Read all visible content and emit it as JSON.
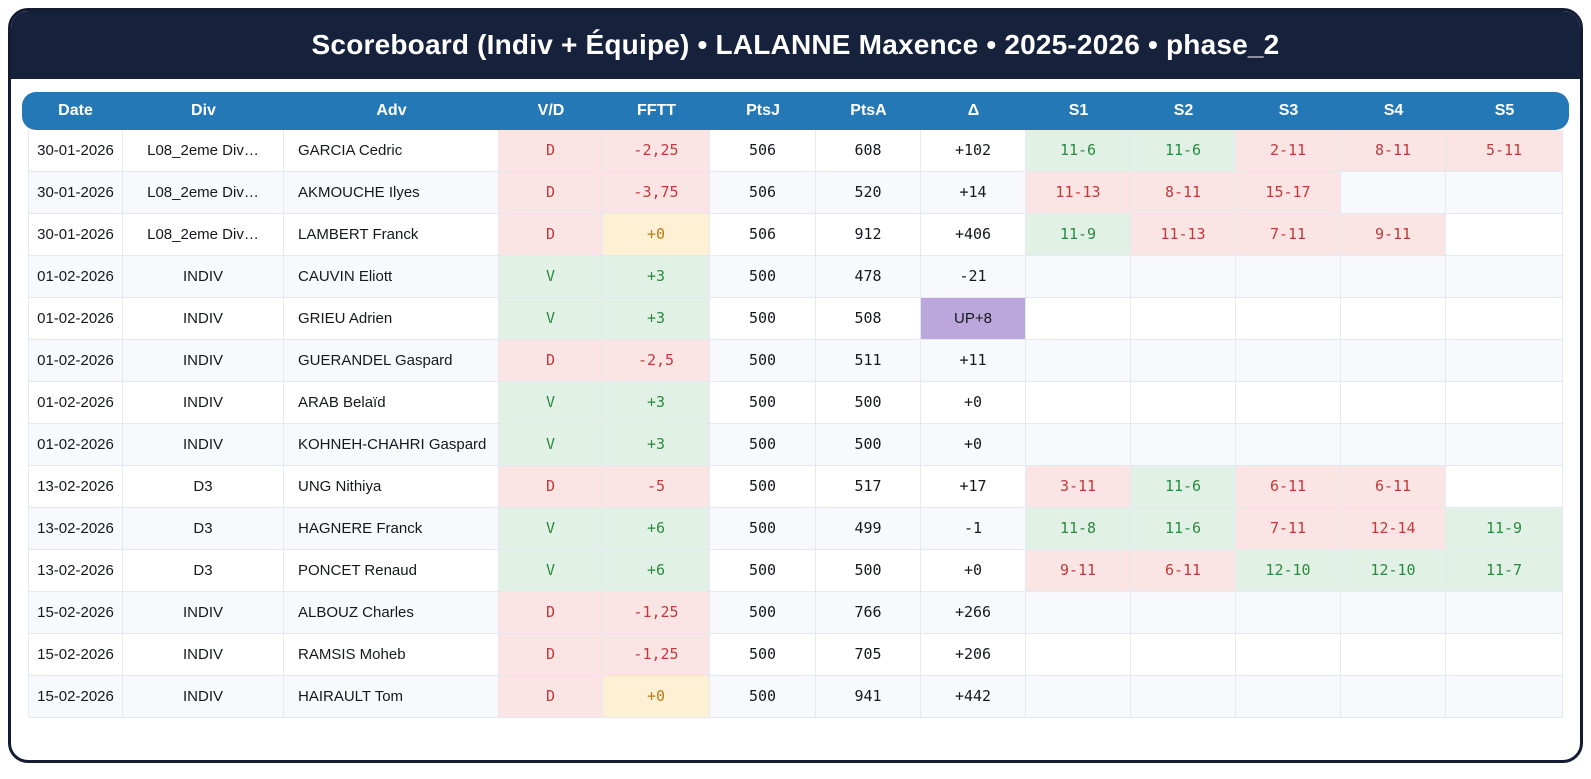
{
  "title": "Scoreboard (Indiv + Équipe) • LALANNE Maxence • 2025-2026 • phase_2",
  "colors": {
    "frame_navy": "#16213c",
    "header_blue": "#2478b5",
    "win_bg": "#e2f1e6",
    "win_text": "#2b8a3e",
    "loss_bg": "#fbe5e4",
    "loss_text": "#c0393b",
    "zero_bg": "#fdf0d5",
    "zero_text": "#b47d15",
    "delta_up_bg": "#bca7dc",
    "row_alt_bg": "#f7f9fc"
  },
  "table": {
    "columns": [
      "Date",
      "Div",
      "Adv",
      "V/D",
      "FFTT",
      "PtsJ",
      "PtsA",
      "Δ",
      "S1",
      "S2",
      "S3",
      "S4",
      "S5"
    ],
    "rows": [
      {
        "date": "30-01-2026",
        "div": "L08_2eme Div…",
        "adv": "GARCIA Cedric",
        "vd": {
          "label": "D",
          "result": "loss"
        },
        "fftt": {
          "label": "-2,25",
          "tone": "loss"
        },
        "ptsj": "506",
        "ptsa": "608",
        "delta": {
          "label": "+102",
          "up": false
        },
        "sets": [
          {
            "score": "11-6",
            "result": "win"
          },
          {
            "score": "11-6",
            "result": "win"
          },
          {
            "score": "2-11",
            "result": "loss"
          },
          {
            "score": "8-11",
            "result": "loss"
          },
          {
            "score": "5-11",
            "result": "loss"
          }
        ]
      },
      {
        "date": "30-01-2026",
        "div": "L08_2eme Div…",
        "adv": "AKMOUCHE Ilyes",
        "vd": {
          "label": "D",
          "result": "loss"
        },
        "fftt": {
          "label": "-3,75",
          "tone": "loss"
        },
        "ptsj": "506",
        "ptsa": "520",
        "delta": {
          "label": "+14",
          "up": false
        },
        "sets": [
          {
            "score": "11-13",
            "result": "loss"
          },
          {
            "score": "8-11",
            "result": "loss"
          },
          {
            "score": "15-17",
            "result": "loss"
          },
          {
            "score": "",
            "result": ""
          },
          {
            "score": "",
            "result": ""
          }
        ]
      },
      {
        "date": "30-01-2026",
        "div": "L08_2eme Div…",
        "adv": "LAMBERT Franck",
        "vd": {
          "label": "D",
          "result": "loss"
        },
        "fftt": {
          "label": "+0",
          "tone": "zero"
        },
        "ptsj": "506",
        "ptsa": "912",
        "delta": {
          "label": "+406",
          "up": false
        },
        "sets": [
          {
            "score": "11-9",
            "result": "win"
          },
          {
            "score": "11-13",
            "result": "loss"
          },
          {
            "score": "7-11",
            "result": "loss"
          },
          {
            "score": "9-11",
            "result": "loss"
          },
          {
            "score": "",
            "result": ""
          }
        ]
      },
      {
        "date": "01-02-2026",
        "div": "INDIV",
        "adv": "CAUVIN Eliott",
        "vd": {
          "label": "V",
          "result": "win"
        },
        "fftt": {
          "label": "+3",
          "tone": "win"
        },
        "ptsj": "500",
        "ptsa": "478",
        "delta": {
          "label": "-21",
          "up": false
        },
        "sets": [
          {
            "score": "",
            "result": ""
          },
          {
            "score": "",
            "result": ""
          },
          {
            "score": "",
            "result": ""
          },
          {
            "score": "",
            "result": ""
          },
          {
            "score": "",
            "result": ""
          }
        ]
      },
      {
        "date": "01-02-2026",
        "div": "INDIV",
        "adv": "GRIEU Adrien",
        "vd": {
          "label": "V",
          "result": "win"
        },
        "fftt": {
          "label": "+3",
          "tone": "win"
        },
        "ptsj": "500",
        "ptsa": "508",
        "delta": {
          "label": "UP+8",
          "up": true
        },
        "sets": [
          {
            "score": "",
            "result": ""
          },
          {
            "score": "",
            "result": ""
          },
          {
            "score": "",
            "result": ""
          },
          {
            "score": "",
            "result": ""
          },
          {
            "score": "",
            "result": ""
          }
        ]
      },
      {
        "date": "01-02-2026",
        "div": "INDIV",
        "adv": "GUERANDEL Gaspard",
        "vd": {
          "label": "D",
          "result": "loss"
        },
        "fftt": {
          "label": "-2,5",
          "tone": "loss"
        },
        "ptsj": "500",
        "ptsa": "511",
        "delta": {
          "label": "+11",
          "up": false
        },
        "sets": [
          {
            "score": "",
            "result": ""
          },
          {
            "score": "",
            "result": ""
          },
          {
            "score": "",
            "result": ""
          },
          {
            "score": "",
            "result": ""
          },
          {
            "score": "",
            "result": ""
          }
        ]
      },
      {
        "date": "01-02-2026",
        "div": "INDIV",
        "adv": "ARAB Belaïd",
        "vd": {
          "label": "V",
          "result": "win"
        },
        "fftt": {
          "label": "+3",
          "tone": "win"
        },
        "ptsj": "500",
        "ptsa": "500",
        "delta": {
          "label": "+0",
          "up": false
        },
        "sets": [
          {
            "score": "",
            "result": ""
          },
          {
            "score": "",
            "result": ""
          },
          {
            "score": "",
            "result": ""
          },
          {
            "score": "",
            "result": ""
          },
          {
            "score": "",
            "result": ""
          }
        ]
      },
      {
        "date": "01-02-2026",
        "div": "INDIV",
        "adv": "KOHNEH-CHAHRI Gaspard",
        "vd": {
          "label": "V",
          "result": "win"
        },
        "fftt": {
          "label": "+3",
          "tone": "win"
        },
        "ptsj": "500",
        "ptsa": "500",
        "delta": {
          "label": "+0",
          "up": false
        },
        "sets": [
          {
            "score": "",
            "result": ""
          },
          {
            "score": "",
            "result": ""
          },
          {
            "score": "",
            "result": ""
          },
          {
            "score": "",
            "result": ""
          },
          {
            "score": "",
            "result": ""
          }
        ]
      },
      {
        "date": "13-02-2026",
        "div": "D3",
        "adv": "UNG Nithiya",
        "vd": {
          "label": "D",
          "result": "loss"
        },
        "fftt": {
          "label": "-5",
          "tone": "loss"
        },
        "ptsj": "500",
        "ptsa": "517",
        "delta": {
          "label": "+17",
          "up": false
        },
        "sets": [
          {
            "score": "3-11",
            "result": "loss"
          },
          {
            "score": "11-6",
            "result": "win"
          },
          {
            "score": "6-11",
            "result": "loss"
          },
          {
            "score": "6-11",
            "result": "loss"
          },
          {
            "score": "",
            "result": ""
          }
        ]
      },
      {
        "date": "13-02-2026",
        "div": "D3",
        "adv": "HAGNERE Franck",
        "vd": {
          "label": "V",
          "result": "win"
        },
        "fftt": {
          "label": "+6",
          "tone": "win"
        },
        "ptsj": "500",
        "ptsa": "499",
        "delta": {
          "label": "-1",
          "up": false
        },
        "sets": [
          {
            "score": "11-8",
            "result": "win"
          },
          {
            "score": "11-6",
            "result": "win"
          },
          {
            "score": "7-11",
            "result": "loss"
          },
          {
            "score": "12-14",
            "result": "loss"
          },
          {
            "score": "11-9",
            "result": "win"
          }
        ]
      },
      {
        "date": "13-02-2026",
        "div": "D3",
        "adv": "PONCET Renaud",
        "vd": {
          "label": "V",
          "result": "win"
        },
        "fftt": {
          "label": "+6",
          "tone": "win"
        },
        "ptsj": "500",
        "ptsa": "500",
        "delta": {
          "label": "+0",
          "up": false
        },
        "sets": [
          {
            "score": "9-11",
            "result": "loss"
          },
          {
            "score": "6-11",
            "result": "loss"
          },
          {
            "score": "12-10",
            "result": "win"
          },
          {
            "score": "12-10",
            "result": "win"
          },
          {
            "score": "11-7",
            "result": "win"
          }
        ]
      },
      {
        "date": "15-02-2026",
        "div": "INDIV",
        "adv": "ALBOUZ Charles",
        "vd": {
          "label": "D",
          "result": "loss"
        },
        "fftt": {
          "label": "-1,25",
          "tone": "loss"
        },
        "ptsj": "500",
        "ptsa": "766",
        "delta": {
          "label": "+266",
          "up": false
        },
        "sets": [
          {
            "score": "",
            "result": ""
          },
          {
            "score": "",
            "result": ""
          },
          {
            "score": "",
            "result": ""
          },
          {
            "score": "",
            "result": ""
          },
          {
            "score": "",
            "result": ""
          }
        ]
      },
      {
        "date": "15-02-2026",
        "div": "INDIV",
        "adv": "RAMSIS Moheb",
        "vd": {
          "label": "D",
          "result": "loss"
        },
        "fftt": {
          "label": "-1,25",
          "tone": "loss"
        },
        "ptsj": "500",
        "ptsa": "705",
        "delta": {
          "label": "+206",
          "up": false
        },
        "sets": [
          {
            "score": "",
            "result": ""
          },
          {
            "score": "",
            "result": ""
          },
          {
            "score": "",
            "result": ""
          },
          {
            "score": "",
            "result": ""
          },
          {
            "score": "",
            "result": ""
          }
        ]
      },
      {
        "date": "15-02-2026",
        "div": "INDIV",
        "adv": "HAIRAULT Tom",
        "vd": {
          "label": "D",
          "result": "loss"
        },
        "fftt": {
          "label": "+0",
          "tone": "zero"
        },
        "ptsj": "500",
        "ptsa": "941",
        "delta": {
          "label": "+442",
          "up": false
        },
        "sets": [
          {
            "score": "",
            "result": ""
          },
          {
            "score": "",
            "result": ""
          },
          {
            "score": "",
            "result": ""
          },
          {
            "score": "",
            "result": ""
          },
          {
            "score": "",
            "result": ""
          }
        ]
      }
    ]
  }
}
